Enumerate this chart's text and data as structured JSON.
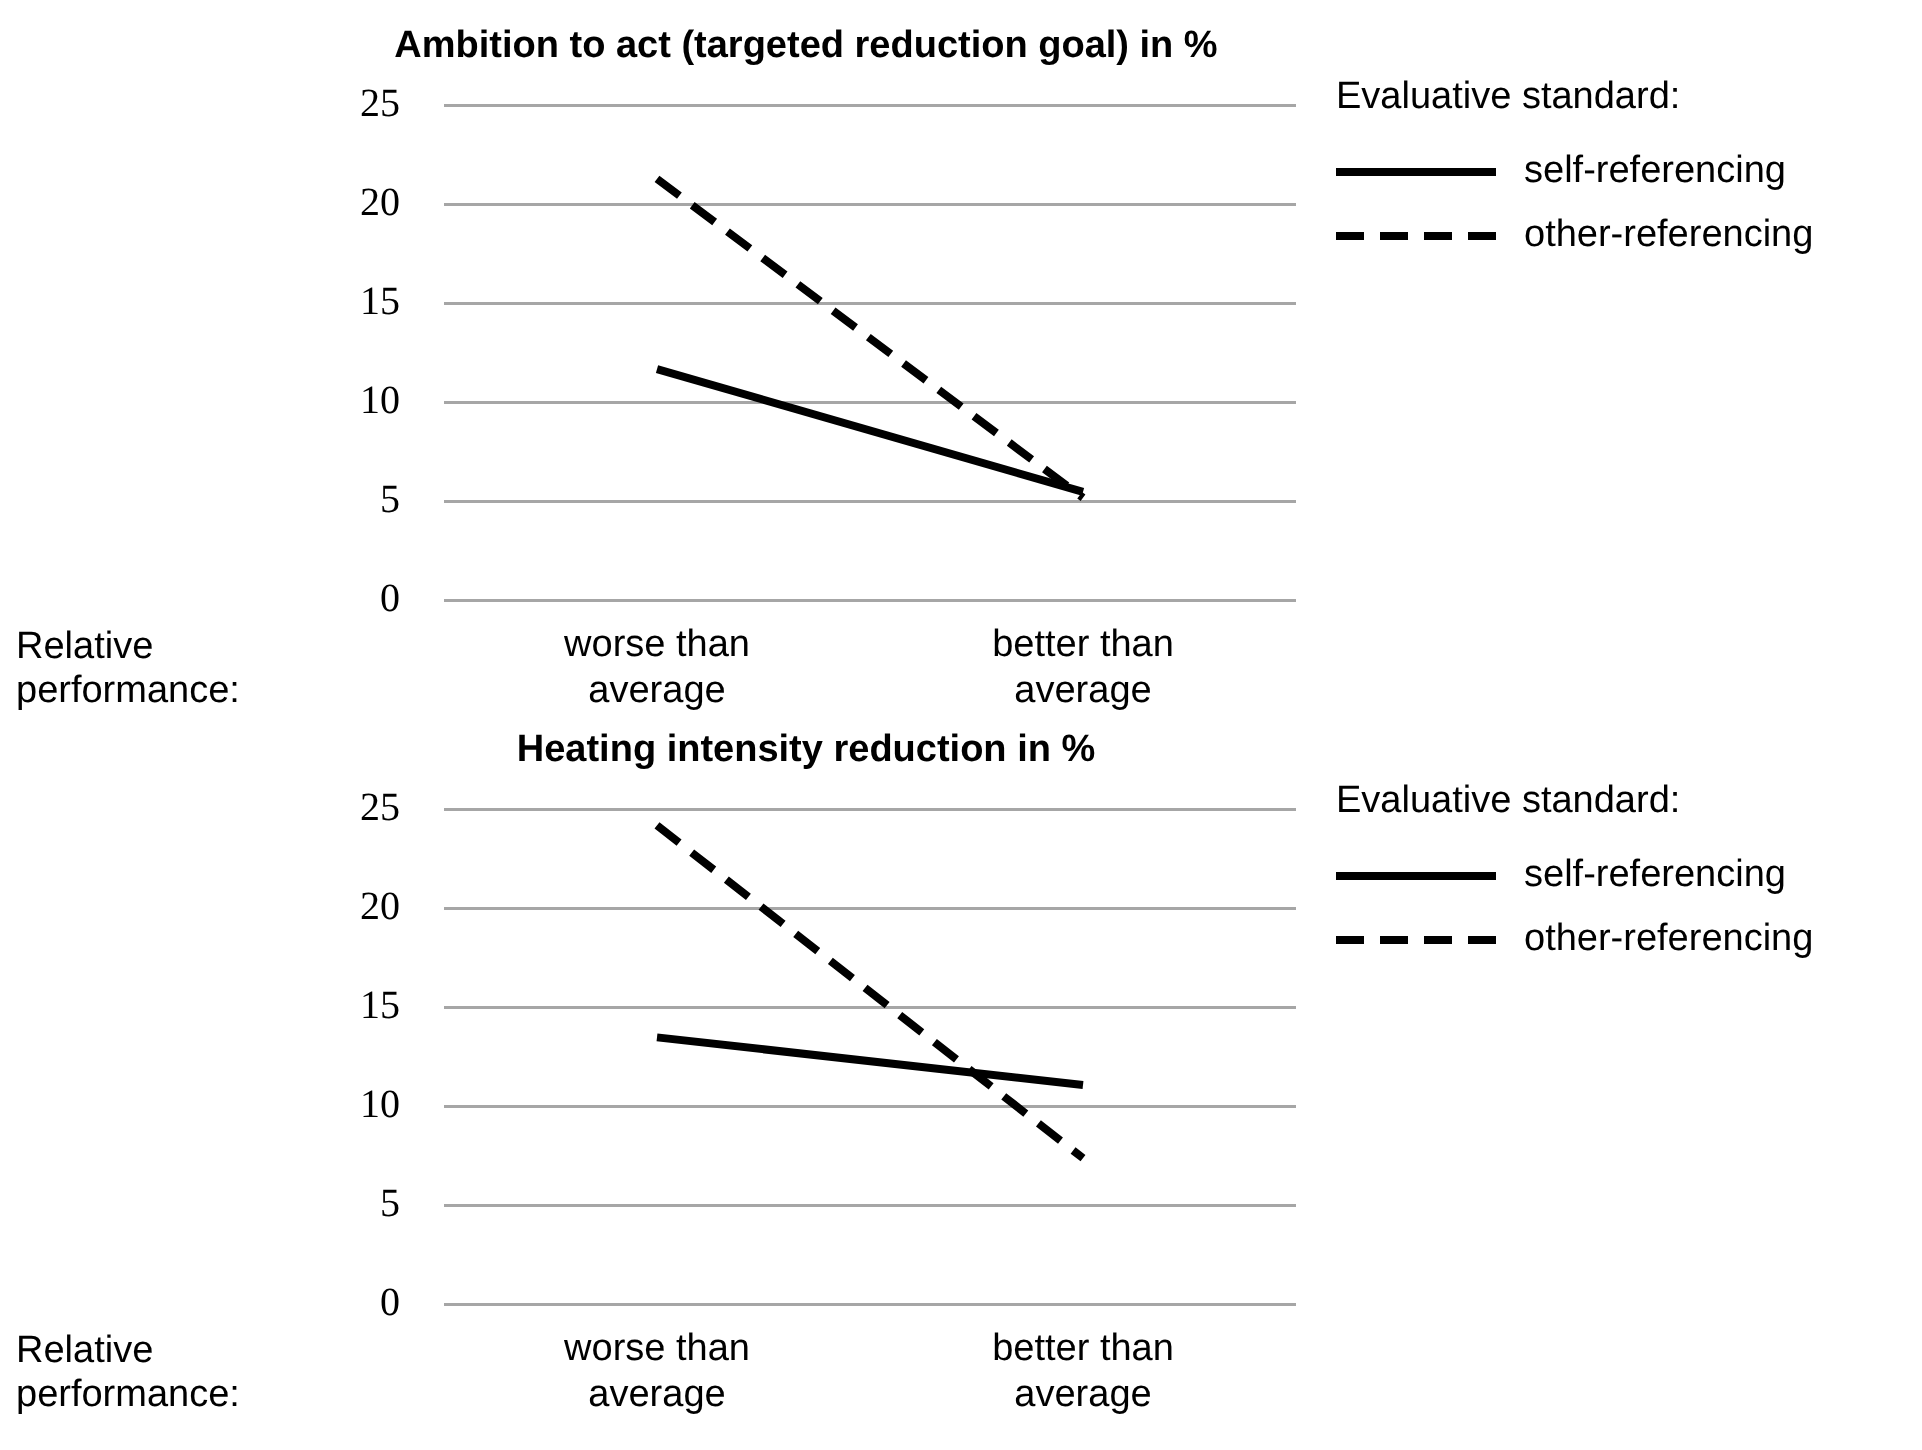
{
  "chart_data": [
    {
      "type": "line",
      "title": "Ambition to act (targeted reduction goal) in %",
      "xlabel": "Relative performance:",
      "legend_title": "Evaluative standard:",
      "categories": [
        "worse than average",
        "better than average"
      ],
      "ylim": [
        0,
        25
      ],
      "yticks": [
        0,
        5,
        10,
        15,
        20,
        25
      ],
      "grid": "y",
      "legend": "top right",
      "marker": "none",
      "series": [
        {
          "name": "self-referencing",
          "color": "#000000",
          "line_style": "solid",
          "values": [
            11.7,
            5.5
          ]
        },
        {
          "name": "other-referencing",
          "color": "#000000",
          "line_style": "dashed",
          "values": [
            21.3,
            5.2
          ]
        }
      ]
    },
    {
      "type": "line",
      "title": "Heating intensity reduction in %",
      "xlabel": "Relative performance:",
      "legend_title": "Evaluative standard:",
      "categories": [
        "worse than average",
        "better than average"
      ],
      "ylim": [
        0,
        25
      ],
      "yticks": [
        0,
        5,
        10,
        15,
        20,
        25
      ],
      "grid": "y",
      "legend": "top right",
      "marker": "none",
      "series": [
        {
          "name": "self-referencing",
          "color": "#000000",
          "line_style": "solid",
          "values": [
            13.5,
            11.1
          ]
        },
        {
          "name": "other-referencing",
          "color": "#000000",
          "line_style": "dashed",
          "values": [
            24.2,
            7.4
          ]
        }
      ]
    }
  ]
}
